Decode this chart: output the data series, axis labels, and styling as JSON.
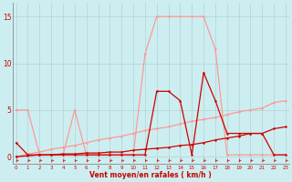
{
  "x": [
    0,
    1,
    2,
    3,
    4,
    5,
    6,
    7,
    8,
    9,
    10,
    11,
    12,
    13,
    14,
    15,
    16,
    17,
    18,
    19,
    20,
    21,
    22,
    23
  ],
  "rafales": [
    5.0,
    5.0,
    0.2,
    0.2,
    0.2,
    5.0,
    0.2,
    0.2,
    0.2,
    0.2,
    0.2,
    11.0,
    15.0,
    15.0,
    15.0,
    15.0,
    15.0,
    11.5,
    0.2,
    0.2,
    0.2,
    0.2,
    0.2,
    0.2
  ],
  "vent_moyen": [
    1.5,
    0.2,
    0.2,
    0.2,
    0.2,
    0.2,
    0.2,
    0.2,
    0.2,
    0.2,
    0.2,
    0.2,
    7.0,
    7.0,
    6.0,
    0.2,
    9.0,
    6.0,
    2.5,
    2.5,
    2.5,
    2.5,
    0.2,
    0.2
  ],
  "trend_light": [
    0.0,
    0.3,
    0.5,
    0.8,
    1.0,
    1.2,
    1.5,
    1.8,
    2.0,
    2.2,
    2.5,
    2.8,
    3.0,
    3.2,
    3.5,
    3.8,
    4.0,
    4.2,
    4.5,
    4.8,
    5.0,
    5.2,
    5.8,
    6.0
  ],
  "trend_dark": [
    0.0,
    0.1,
    0.2,
    0.2,
    0.3,
    0.3,
    0.4,
    0.4,
    0.5,
    0.5,
    0.7,
    0.8,
    0.9,
    1.0,
    1.2,
    1.3,
    1.5,
    1.8,
    2.0,
    2.2,
    2.5,
    2.5,
    3.0,
    3.2
  ],
  "color_dark": "#cc0000",
  "color_light": "#ff9999",
  "bg_color": "#cceef0",
  "grid_color": "#aacccc",
  "xlabel": "Vent moyen/en rafales ( km/h )",
  "yticks": [
    0,
    5,
    10,
    15
  ],
  "xlim": [
    -0.3,
    23.3
  ],
  "ylim": [
    -0.8,
    16.5
  ]
}
